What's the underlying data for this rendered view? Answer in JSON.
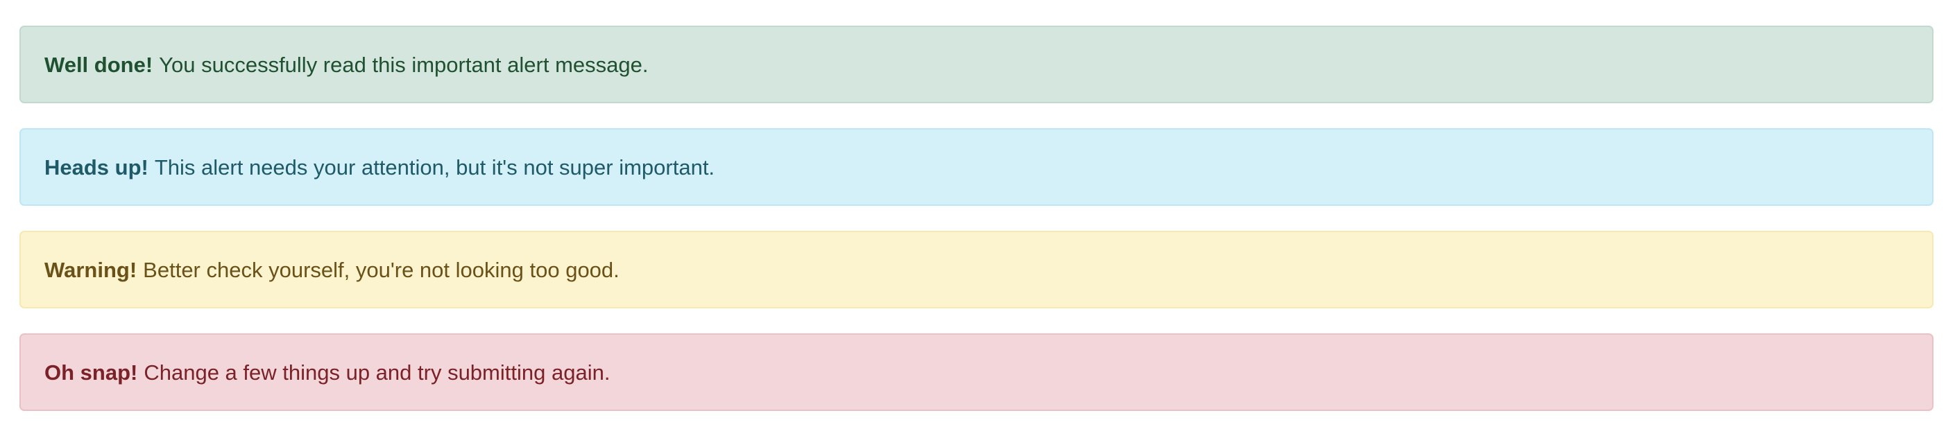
{
  "alerts": [
    {
      "type": "success",
      "title": "Well done!",
      "message": "You successfully read this important alert message.",
      "colors": {
        "background": "#d4e6de",
        "border": "#c0dacd",
        "text": "#1f5130"
      }
    },
    {
      "type": "info",
      "title": "Heads up!",
      "message": "This alert needs your attention, but it's not super important.",
      "colors": {
        "background": "#d4f0f8",
        "border": "#bfe7f3",
        "text": "#1e5a68"
      }
    },
    {
      "type": "warning",
      "title": "Warning!",
      "message": "Better check yourself, you're not looking too good.",
      "colors": {
        "background": "#fcf3cf",
        "border": "#f7e9b4",
        "text": "#6a5117"
      }
    },
    {
      "type": "danger",
      "title": "Oh snap!",
      "message": "Change a few things up and try submitting again.",
      "colors": {
        "background": "#f3d6d9",
        "border": "#ecc1c6",
        "text": "#7b2128"
      }
    }
  ]
}
